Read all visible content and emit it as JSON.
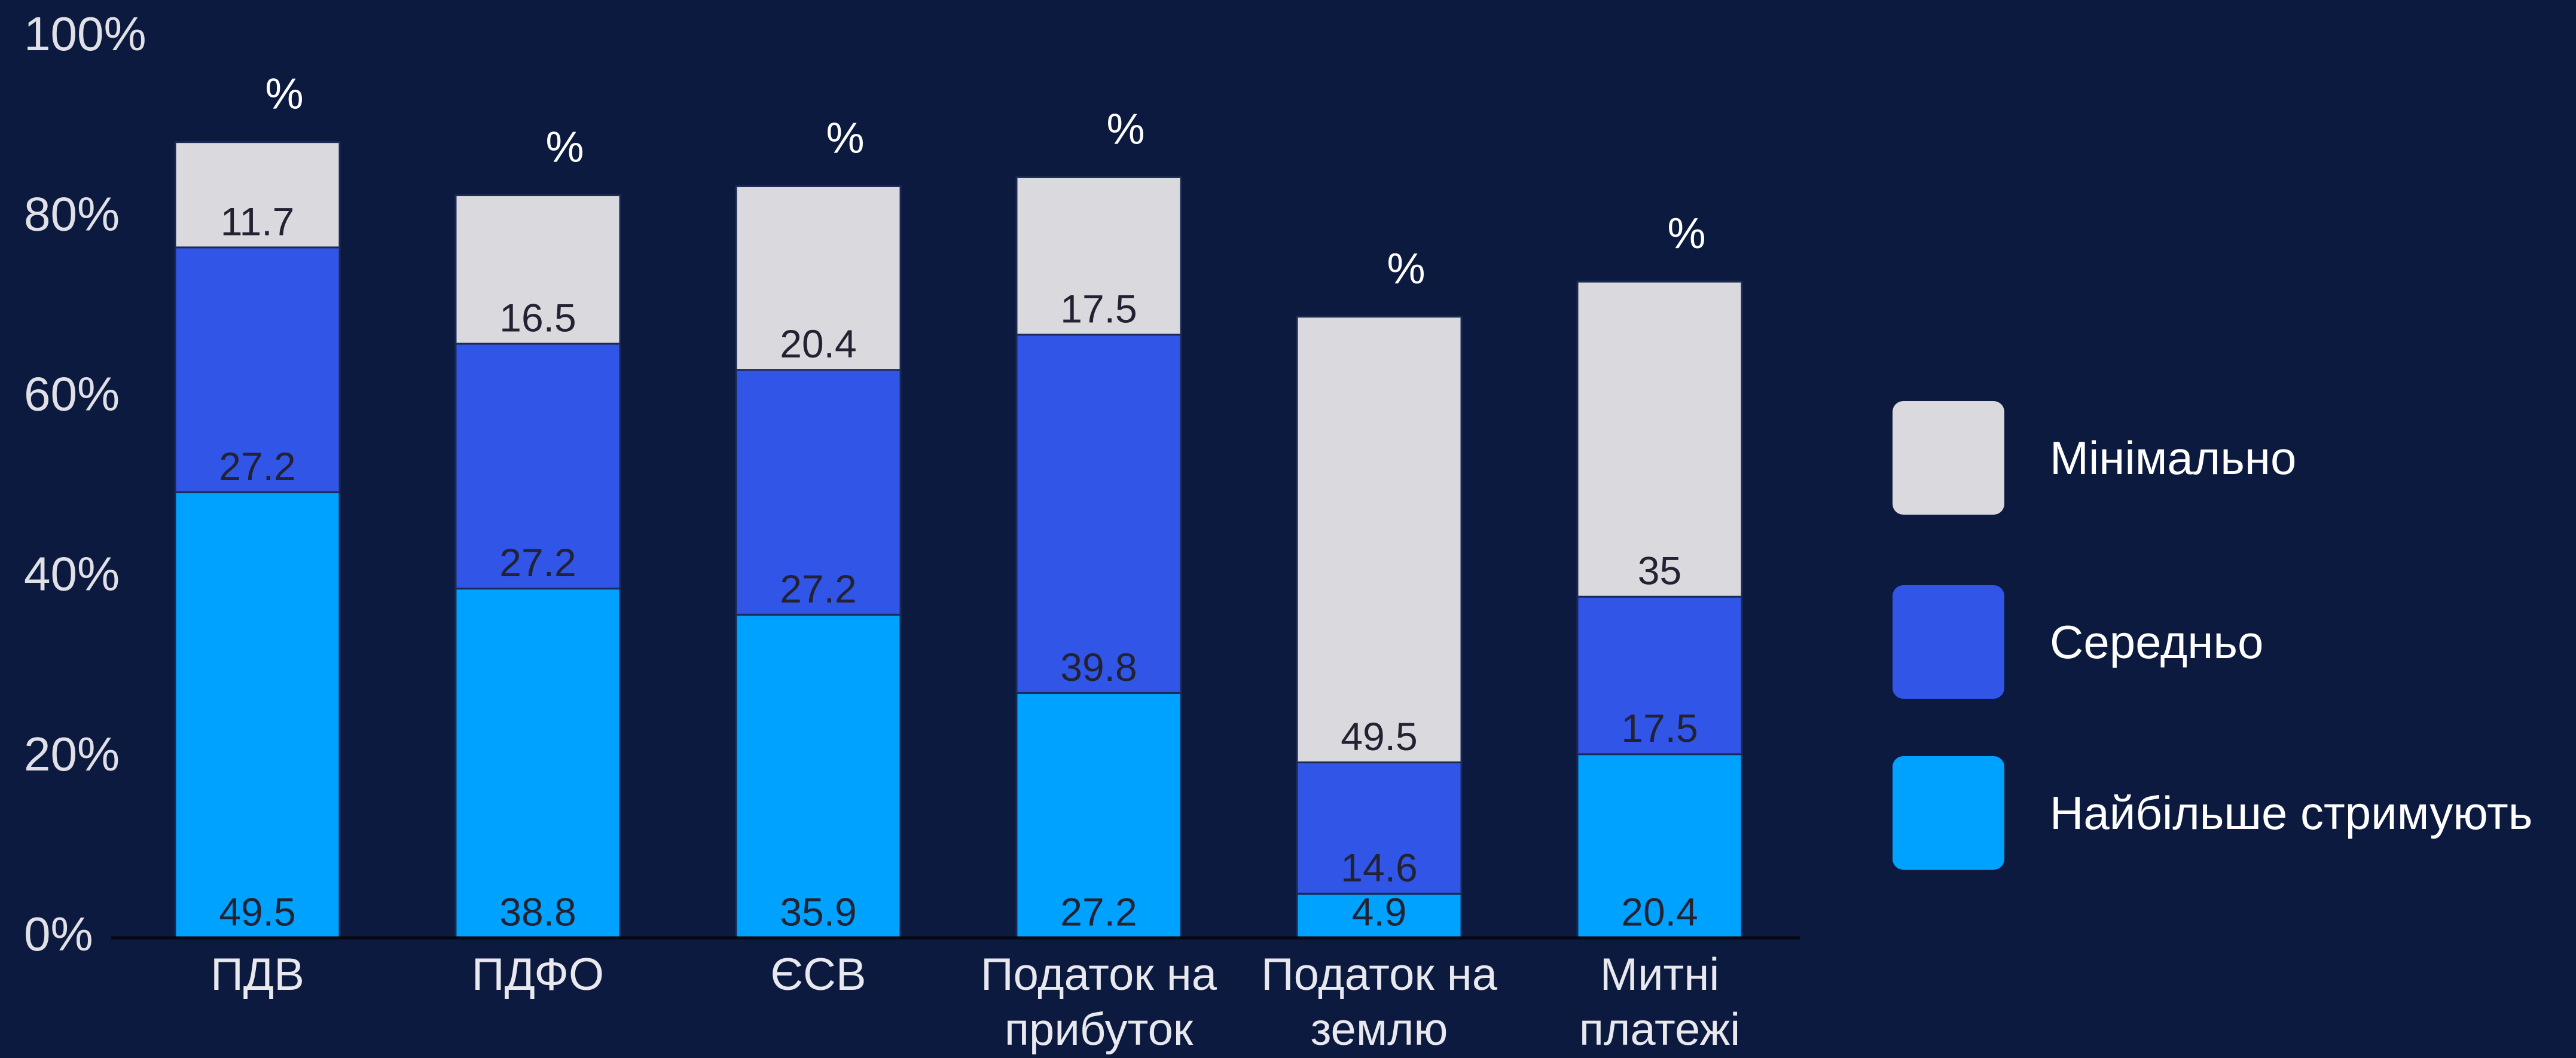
{
  "chart_data": {
    "type": "stacked_bar",
    "categories": [
      "ПДВ",
      "ПДФО",
      "ЄСВ",
      "Податок на прибуток",
      "Податок на землю",
      "Митні платежі"
    ],
    "series": [
      {
        "name": "Найбільше стримують",
        "color": "#00a2ff",
        "values": [
          49.5,
          38.8,
          35.9,
          27.2,
          4.9,
          20.4
        ]
      },
      {
        "name": "Середньо",
        "color": "#3155e6",
        "values": [
          27.2,
          27.2,
          27.2,
          39.8,
          14.6,
          17.5
        ]
      },
      {
        "name": "Мінімально",
        "color": "#d9d9de",
        "values": [
          11.7,
          16.5,
          20.4,
          17.5,
          49.5,
          35
        ]
      }
    ],
    "top_labels": [
      "%",
      "%",
      "%",
      "%",
      "%",
      "%"
    ],
    "ylim": [
      0,
      100
    ],
    "yticks": [
      {
        "value": 0,
        "label": "0%"
      },
      {
        "value": 20,
        "label": "20%"
      },
      {
        "value": 40,
        "label": "40%"
      },
      {
        "value": 60,
        "label": "60%"
      },
      {
        "value": 80,
        "label": "80%"
      },
      {
        "value": 100,
        "label": "100%"
      }
    ],
    "grid": false,
    "legend": "right"
  }
}
